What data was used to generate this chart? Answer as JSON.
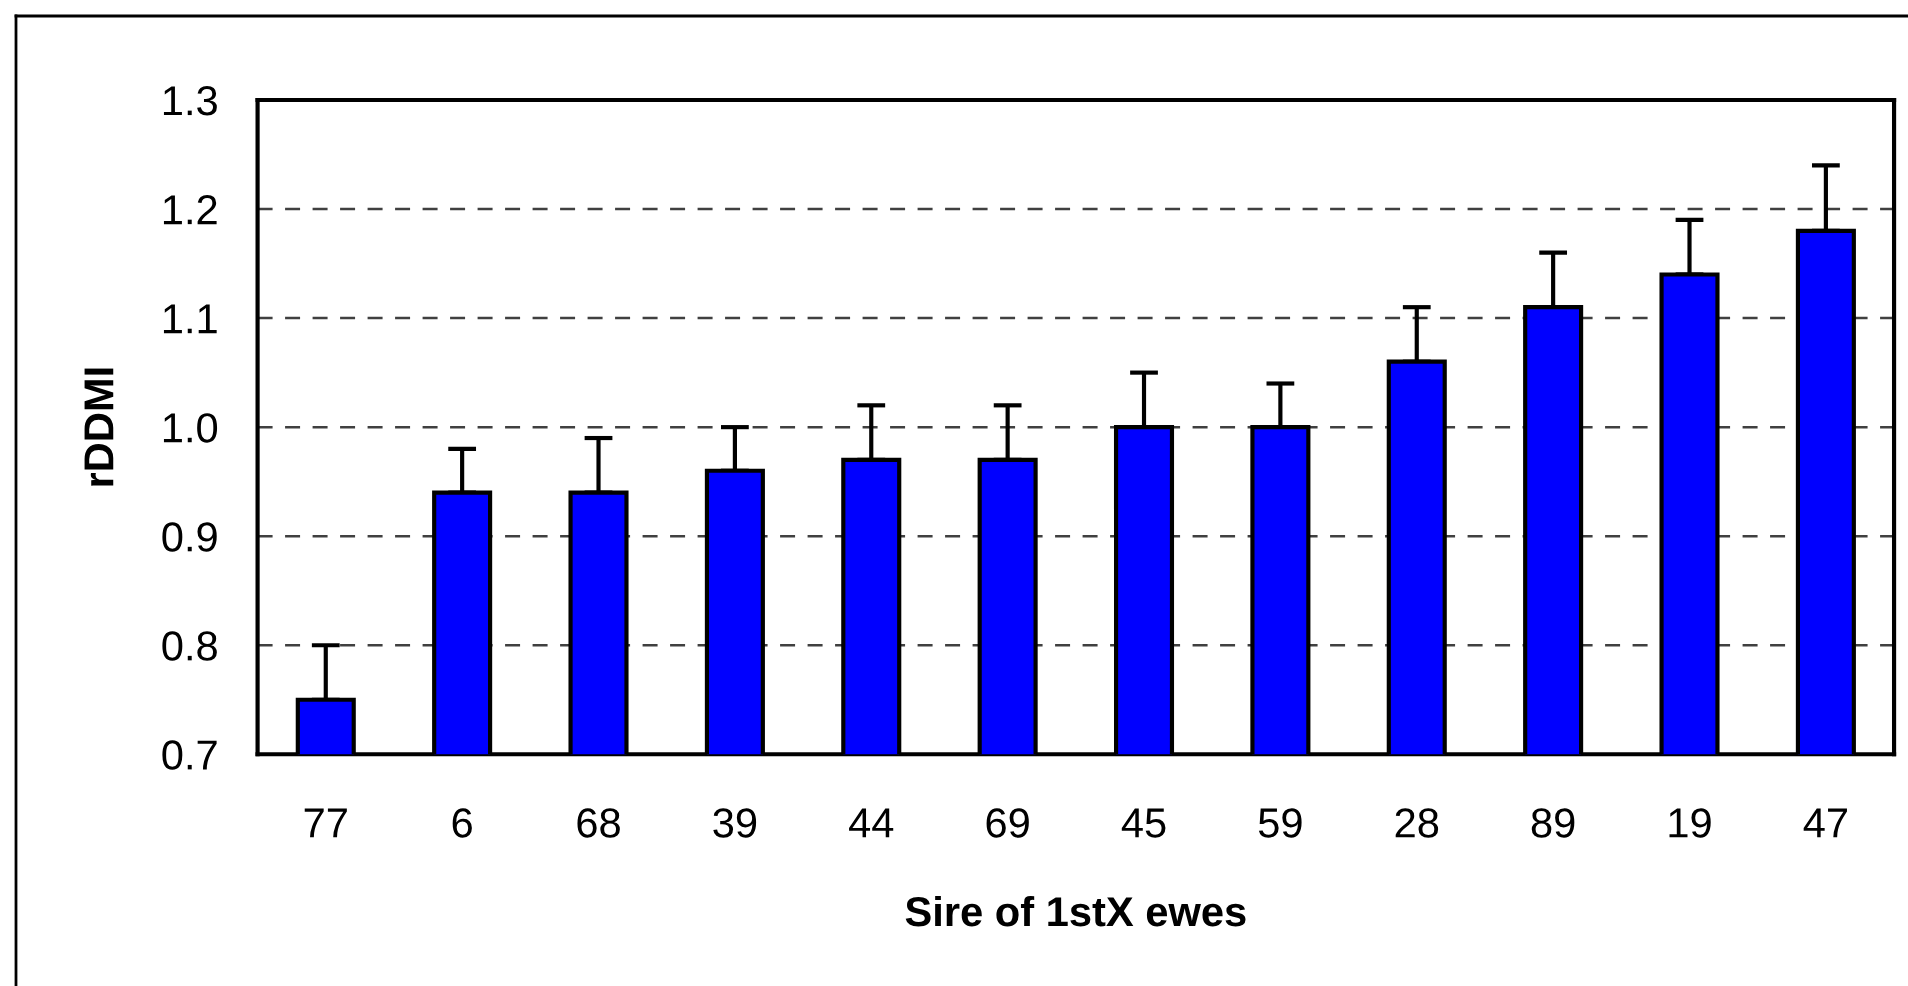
{
  "chart_data": {
    "type": "bar",
    "xlabel": "Sire of 1stX ewes",
    "ylabel": "rDDMI",
    "categories": [
      "77",
      "6",
      "68",
      "39",
      "44",
      "69",
      "45",
      "59",
      "28",
      "89",
      "19",
      "47"
    ],
    "values": [
      0.75,
      0.94,
      0.94,
      0.96,
      0.97,
      0.97,
      1.0,
      1.0,
      1.06,
      1.11,
      1.14,
      1.18
    ],
    "errors": [
      [
        0.75,
        0.8
      ],
      [
        0.94,
        0.98
      ],
      [
        0.94,
        0.99
      ],
      [
        0.96,
        1.0
      ],
      [
        0.97,
        1.02
      ],
      [
        0.97,
        1.02
      ],
      [
        1.0,
        1.05
      ],
      [
        1.0,
        1.04
      ],
      [
        1.06,
        1.11
      ],
      [
        1.11,
        1.16
      ],
      [
        1.14,
        1.19
      ],
      [
        1.18,
        1.24
      ]
    ],
    "color": "#0000ff",
    "ylim": [
      0.7,
      1.3
    ],
    "yticks": [
      {
        "value": 0.7,
        "label": "0.7"
      },
      {
        "value": 0.8,
        "label": "0.8"
      },
      {
        "value": 0.9,
        "label": "0.9"
      },
      {
        "value": 1.0,
        "label": "1.0"
      },
      {
        "value": 1.1,
        "label": "1.1"
      },
      {
        "value": 1.2,
        "label": "1.2"
      },
      {
        "value": 1.3,
        "label": "1.3"
      }
    ],
    "grid": "y",
    "legend": false
  }
}
